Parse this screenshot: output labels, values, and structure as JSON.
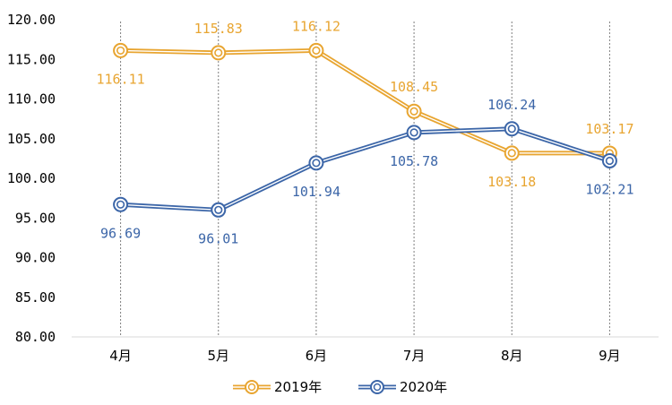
{
  "chart_data": {
    "type": "line",
    "categories": [
      "4月",
      "5月",
      "6月",
      "7月",
      "8月",
      "9月"
    ],
    "ylim": [
      80,
      120
    ],
    "y_ticks": [
      "80.00",
      "85.00",
      "90.00",
      "95.00",
      "100.00",
      "105.00",
      "110.00",
      "115.00",
      "120.00"
    ],
    "grid": "vertical dotted lines at each category",
    "legend_position": "bottom-center",
    "series": [
      {
        "name": "2019年",
        "color": "#E8A531",
        "values": [
          116.11,
          115.83,
          116.12,
          108.45,
          103.18,
          103.17
        ],
        "labels": [
          "116.11",
          "115.83",
          "116.12",
          "108.45",
          "103.18",
          "103.17"
        ],
        "label_pos": [
          "below",
          "above",
          "above",
          "above",
          "below",
          "above"
        ]
      },
      {
        "name": "2020年",
        "color": "#3C66A8",
        "values": [
          96.69,
          96.01,
          101.94,
          105.78,
          106.24,
          102.21
        ],
        "labels": [
          "96.69",
          "96.01",
          "101.94",
          "105.78",
          "106.24",
          "102.21"
        ],
        "label_pos": [
          "below",
          "below",
          "below",
          "below",
          "above",
          "below"
        ]
      }
    ]
  }
}
